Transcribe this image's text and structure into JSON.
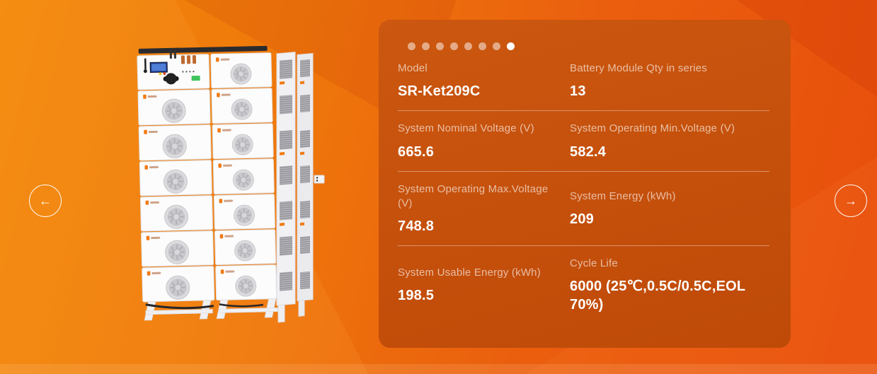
{
  "colors": {
    "background_orange": "#ee7a0b",
    "card_background": "#c5520d",
    "accent_white": "#ffffff",
    "brand_orange_logo": "#f07a12"
  },
  "carousel": {
    "dots_total": 8,
    "active_dot": 7,
    "prev_icon": "←",
    "next_icon": "→"
  },
  "specs": [
    {
      "label": "Model",
      "value": "SR-Ket209C"
    },
    {
      "label": "Battery Module Qty in series",
      "value": "13"
    },
    {
      "label": "System Nominal Voltage (V)",
      "value": "665.6"
    },
    {
      "label": "System Operating Min.Voltage (V)",
      "value": "582.4"
    },
    {
      "label": "System Operating Max.Voltage (V)",
      "value": "748.8"
    },
    {
      "label": "System Energy (kWh)",
      "value": "209"
    },
    {
      "label": "System Usable Energy (kWh)",
      "value": "198.5"
    },
    {
      "label": "Cycle Life",
      "value": "6000 (25℃,0.5C/0.5C,EOL 70%)"
    }
  ]
}
